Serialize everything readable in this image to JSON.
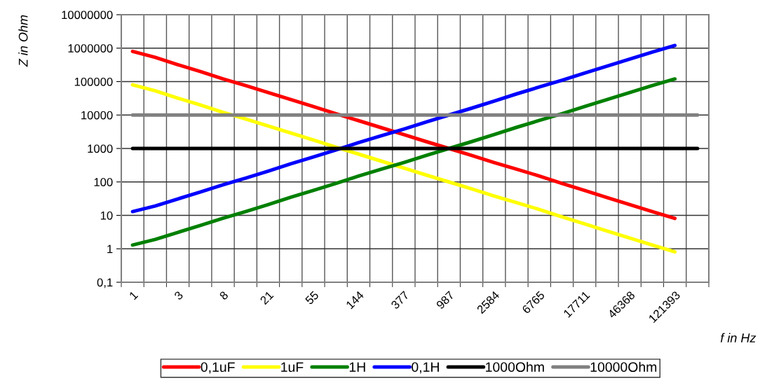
{
  "chart_data": {
    "type": "line",
    "xlabel": "f in Hz",
    "ylabel": "Z in Ohm",
    "categories": [
      "1",
      null,
      "3",
      null,
      "8",
      null,
      "21",
      null,
      "55",
      null,
      "144",
      null,
      "377",
      null,
      "987",
      null,
      "2584",
      null,
      "6765",
      null,
      "17711",
      null,
      "46368",
      null,
      "121393",
      null
    ],
    "series": [
      {
        "name": "0,1uF",
        "color": "#ff0000",
        "values": [
          800000,
          530000,
          320000,
          200000,
          120000,
          76000,
          47000,
          29000,
          18000,
          11000,
          6800,
          4200,
          2600,
          1600,
          1000,
          620,
          380,
          240,
          150,
          90,
          56,
          34,
          21,
          13,
          8.1,
          null
        ]
      },
      {
        "name": "1uF",
        "color": "#ffff00",
        "values": [
          80000,
          53000,
          32000,
          20000,
          12000,
          7600,
          4700,
          2900,
          1800,
          1100,
          680,
          420,
          260,
          160,
          100,
          62,
          38,
          24,
          15,
          9,
          5.6,
          3.4,
          2.1,
          1.3,
          0.81,
          null
        ]
      },
      {
        "name": "1H",
        "color": "#008000",
        "values": [
          1.3,
          1.9,
          3.1,
          5,
          8.2,
          13,
          21,
          35,
          56,
          90,
          150,
          240,
          380,
          620,
          1000,
          1600,
          2600,
          4300,
          6900,
          11000,
          18000,
          29000,
          47000,
          76000,
          120000,
          null
        ]
      },
      {
        "name": "0,1H",
        "color": "#0000ff",
        "values": [
          13,
          19,
          31,
          50,
          82,
          130,
          210,
          350,
          560,
          900,
          1500,
          2400,
          3800,
          6200,
          10000,
          16000,
          26000,
          43000,
          69000,
          110000,
          180000,
          290000,
          470000,
          760000,
          1200000,
          null
        ]
      },
      {
        "name": "1000Ohm",
        "color": "#000000",
        "values": [
          1000,
          1000,
          1000,
          1000,
          1000,
          1000,
          1000,
          1000,
          1000,
          1000,
          1000,
          1000,
          1000,
          1000,
          1000,
          1000,
          1000,
          1000,
          1000,
          1000,
          1000,
          1000,
          1000,
          1000,
          1000,
          1000
        ]
      },
      {
        "name": "10000Ohm",
        "color": "#808080",
        "values": [
          10000,
          10000,
          10000,
          10000,
          10000,
          10000,
          10000,
          10000,
          10000,
          10000,
          10000,
          10000,
          10000,
          10000,
          10000,
          10000,
          10000,
          10000,
          10000,
          10000,
          10000,
          10000,
          10000,
          10000,
          10000,
          10000
        ]
      }
    ],
    "log": "y",
    "ylim": [
      0.1,
      10000000
    ],
    "yticks": [
      {
        "value": 0.1,
        "label": "0,1"
      },
      1,
      10,
      100,
      1000,
      10000,
      100000,
      1000000,
      10000000
    ],
    "grid": true,
    "legend": "bottom",
    "marker": "none",
    "line_style": "solid"
  }
}
